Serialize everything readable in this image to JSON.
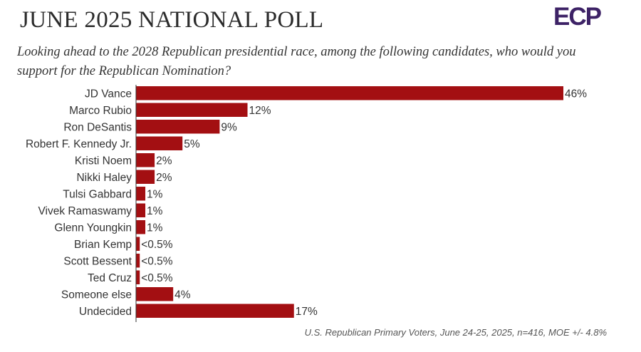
{
  "header": {
    "title": "JUNE 2025 NATIONAL POLL",
    "logo_text": "ECP",
    "question": "Looking ahead to the 2028 Republican presidential race, among the following candidates, who would you support for the Republican Nomination?"
  },
  "footnote": "U.S. Republican Primary Voters, June 24-25, 2025, n=416, MOE +/- 4.8%",
  "colors": {
    "bar": "#a30f12",
    "axis": "#333333",
    "logo": "#3d2266"
  },
  "chart_data": {
    "type": "bar",
    "orientation": "horizontal",
    "categories": [
      "JD Vance",
      "Marco Rubio",
      "Ron DeSantis",
      "Robert F. Kennedy Jr.",
      "Kristi Noem",
      "Nikki Haley",
      "Tulsi Gabbard",
      "Vivek Ramaswamy",
      "Glenn Youngkin",
      "Brian Kemp",
      "Scott Bessent",
      "Ted Cruz",
      "Someone else",
      "Undecided"
    ],
    "values": [
      46,
      12,
      9,
      5,
      2,
      2,
      1,
      1,
      1,
      0.4,
      0.4,
      0.4,
      4,
      17
    ],
    "data_labels": [
      "46%",
      "12%",
      "9%",
      "5%",
      "2%",
      "2%",
      "1%",
      "1%",
      "1%",
      "<0.5%",
      "<0.5%",
      "<0.5%",
      "4%",
      "17%"
    ],
    "xlim": [
      0,
      46
    ],
    "grid": false,
    "title": "",
    "xlabel": "",
    "ylabel": ""
  }
}
